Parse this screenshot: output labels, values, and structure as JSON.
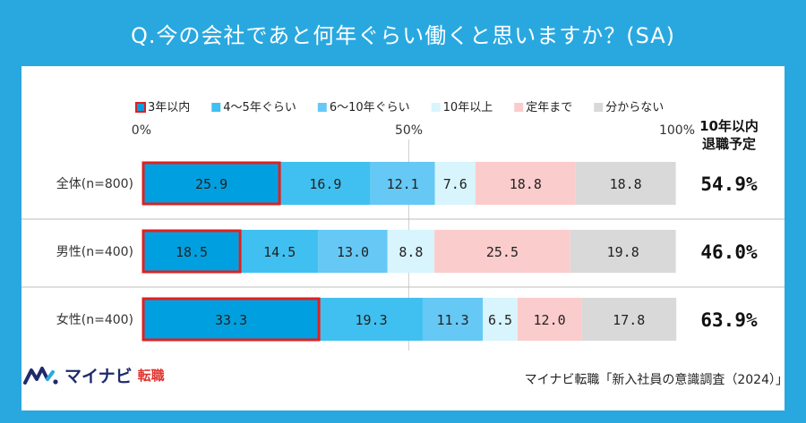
{
  "header": {
    "title": "Q.今の会社であと何年ぐらい働くと思いますか？(SA)"
  },
  "brand": {
    "name": "マイナビ",
    "sub": "転職",
    "icon": "mynavi-logo-icon"
  },
  "source": "マイナビ転職「新入社員の意識調査（2024）」",
  "colors": {
    "header_bg": "#29a8e0",
    "highlight_border": "#e02020"
  },
  "chart_data": {
    "type": "bar",
    "orientation": "horizontal-stacked-100",
    "categories": [
      "全体(n=800)",
      "男性(n=400)",
      "女性(n=400)"
    ],
    "series": [
      {
        "name": "3年以内",
        "color": "#00a0e0",
        "values": [
          25.9,
          18.5,
          33.3
        ]
      },
      {
        "name": "4〜5年ぐらい",
        "color": "#40c0f0",
        "values": [
          16.9,
          14.5,
          19.3
        ]
      },
      {
        "name": "6〜10年ぐらい",
        "color": "#66c8f5",
        "values": [
          12.1,
          13.0,
          11.3
        ]
      },
      {
        "name": "10年以上",
        "color": "#d8f4fc",
        "values": [
          7.6,
          8.8,
          6.5
        ]
      },
      {
        "name": "定年まで",
        "color": "#fbcccc",
        "values": [
          18.8,
          25.5,
          12.0
        ]
      },
      {
        "name": "分からない",
        "color": "#d9d9d9",
        "values": [
          18.8,
          19.8,
          17.8
        ]
      }
    ],
    "axis_ticks": [
      "0%",
      "50%",
      "100%"
    ],
    "xlim": [
      0,
      100
    ],
    "highlight_series": "3年以内",
    "summary": {
      "label": "10年以内\n退職予定",
      "values": [
        "54.9%",
        "46.0%",
        "63.9%"
      ]
    }
  }
}
